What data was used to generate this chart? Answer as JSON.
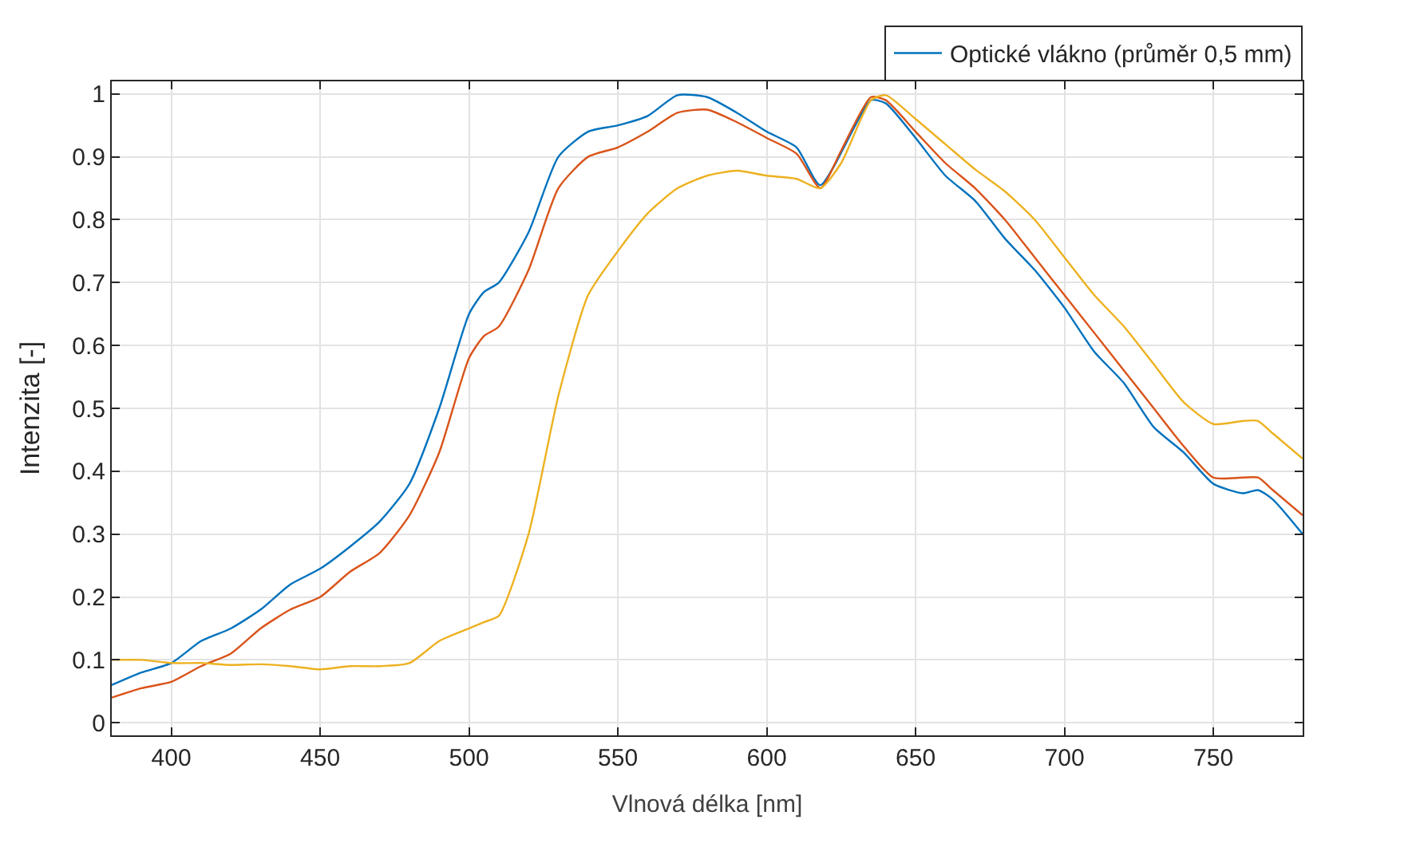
{
  "chart_data": {
    "type": "line",
    "xlabel": "Vlnová délka [nm]",
    "ylabel": "Intenzita [-]",
    "xlim": [
      380,
      780
    ],
    "xticks": [
      400,
      450,
      500,
      550,
      600,
      650,
      700,
      750
    ],
    "ylim": [
      -0.02,
      1.02
    ],
    "yticks": [
      {
        "value": 0,
        "label": "0"
      },
      0.1,
      0.2,
      0.3,
      0.4,
      0.5,
      0.6,
      0.7,
      0.8,
      0.9,
      {
        "value": 1,
        "label": "1"
      }
    ],
    "grid": true,
    "legend": "top right",
    "marker": "none",
    "line_style": "solid",
    "x": [
      380,
      390,
      400,
      410,
      420,
      430,
      440,
      450,
      460,
      470,
      480,
      490,
      500,
      505,
      510,
      520,
      530,
      540,
      550,
      560,
      570,
      580,
      590,
      600,
      610,
      618,
      625,
      635,
      640,
      650,
      660,
      670,
      680,
      690,
      700,
      710,
      720,
      730,
      740,
      750,
      760,
      765,
      770,
      780
    ],
    "series": [
      {
        "name": "Optické vlákno (průměr 0,5 mm)",
        "color": "#0072bd",
        "values": [
          0.06,
          0.08,
          0.095,
          0.13,
          0.15,
          0.18,
          0.22,
          0.245,
          0.28,
          0.32,
          0.38,
          0.5,
          0.65,
          0.685,
          0.7,
          0.78,
          0.9,
          0.94,
          0.95,
          0.965,
          0.998,
          0.995,
          0.97,
          0.94,
          0.915,
          0.855,
          null,
          0.99,
          0.985,
          0.93,
          0.87,
          0.83,
          0.77,
          0.72,
          0.66,
          0.59,
          0.54,
          0.47,
          0.43,
          0.38,
          0.365,
          0.37,
          0.355,
          0.3
        ]
      },
      {
        "color": "#d95319",
        "values": [
          0.04,
          0.055,
          0.065,
          0.09,
          0.11,
          0.15,
          0.18,
          0.2,
          0.24,
          0.27,
          0.33,
          0.43,
          0.58,
          0.615,
          0.63,
          0.72,
          0.85,
          0.9,
          0.915,
          0.94,
          0.97,
          0.975,
          0.955,
          0.93,
          0.905,
          0.85,
          0.91,
          0.995,
          0.99,
          0.94,
          0.89,
          0.85,
          0.8,
          0.74,
          0.68,
          0.62,
          0.56,
          0.5,
          0.44,
          0.39,
          0.39,
          0.39,
          0.37,
          0.33
        ]
      },
      {
        "color": "#edb120",
        "values": [
          0.1,
          0.1,
          0.095,
          0.095,
          0.092,
          0.093,
          0.09,
          0.085,
          0.09,
          0.09,
          0.095,
          0.13,
          0.15,
          0.16,
          0.17,
          0.3,
          0.52,
          0.68,
          0.75,
          0.81,
          0.85,
          0.87,
          0.878,
          0.87,
          0.865,
          0.85,
          0.89,
          0.99,
          0.998,
          0.96,
          0.92,
          0.88,
          0.845,
          0.8,
          0.74,
          0.68,
          0.63,
          0.57,
          0.51,
          0.475,
          0.48,
          0.48,
          0.46,
          0.42
        ]
      }
    ]
  }
}
